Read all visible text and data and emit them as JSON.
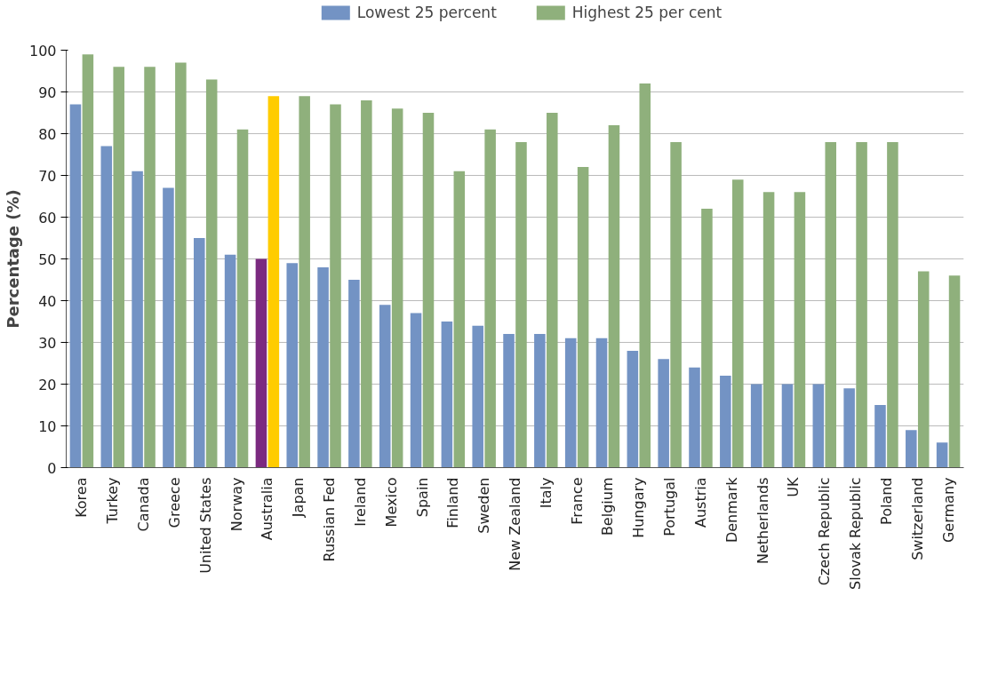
{
  "chart_data": {
    "type": "bar",
    "ylabel": "Percentage (%)",
    "categories": [
      "Korea",
      "Turkey",
      "Canada",
      "Greece",
      "United States",
      "Norway",
      "Australia",
      "Japan",
      "Russian Fed",
      "Ireland",
      "Mexico",
      "Spain",
      "Finland",
      "Sweden",
      "New Zealand",
      "Italy",
      "France",
      "Belgium",
      "Hungary",
      "Portugal",
      "Austria",
      "Denmark",
      "Netherlands",
      "UK",
      "Czech Republic",
      "Slovak Republic",
      "Poland",
      "Switzerland",
      "Germany"
    ],
    "series": [
      {
        "name": "Lowest 25 percent",
        "color": "#7393c4",
        "colors": [
          "#7393c4",
          "#7393c4",
          "#7393c4",
          "#7393c4",
          "#7393c4",
          "#7393c4",
          "#7b2a80",
          "#7393c4",
          "#7393c4",
          "#7393c4",
          "#7393c4",
          "#7393c4",
          "#7393c4",
          "#7393c4",
          "#7393c4",
          "#7393c4",
          "#7393c4",
          "#7393c4",
          "#7393c4",
          "#7393c4",
          "#7393c4",
          "#7393c4",
          "#7393c4",
          "#7393c4",
          "#7393c4",
          "#7393c4",
          "#7393c4",
          "#7393c4",
          "#7393c4"
        ],
        "values": [
          87,
          77,
          71,
          67,
          55,
          51,
          50,
          49,
          48,
          45,
          39,
          37,
          35,
          34,
          32,
          32,
          31,
          31,
          28,
          26,
          24,
          22,
          20,
          20,
          20,
          19,
          15,
          9,
          6
        ]
      },
      {
        "name": "Highest 25 per cent",
        "color": "#8fb07c",
        "colors": [
          "#8fb07c",
          "#8fb07c",
          "#8fb07c",
          "#8fb07c",
          "#8fb07c",
          "#8fb07c",
          "#ffcc00",
          "#8fb07c",
          "#8fb07c",
          "#8fb07c",
          "#8fb07c",
          "#8fb07c",
          "#8fb07c",
          "#8fb07c",
          "#8fb07c",
          "#8fb07c",
          "#8fb07c",
          "#8fb07c",
          "#8fb07c",
          "#8fb07c",
          "#8fb07c",
          "#8fb07c",
          "#8fb07c",
          "#8fb07c",
          "#8fb07c",
          "#8fb07c",
          "#8fb07c",
          "#8fb07c",
          "#8fb07c"
        ],
        "values": [
          99,
          96,
          96,
          97,
          93,
          81,
          89,
          89,
          87,
          88,
          86,
          85,
          71,
          81,
          78,
          85,
          72,
          82,
          92,
          78,
          62,
          69,
          66,
          66,
          78,
          78,
          78,
          47,
          46
        ]
      }
    ],
    "ylim": [
      0,
      100
    ],
    "yticks": [
      0,
      10,
      20,
      30,
      40,
      50,
      60,
      70,
      80,
      90,
      100
    ],
    "grid": "y",
    "legend": "top"
  }
}
